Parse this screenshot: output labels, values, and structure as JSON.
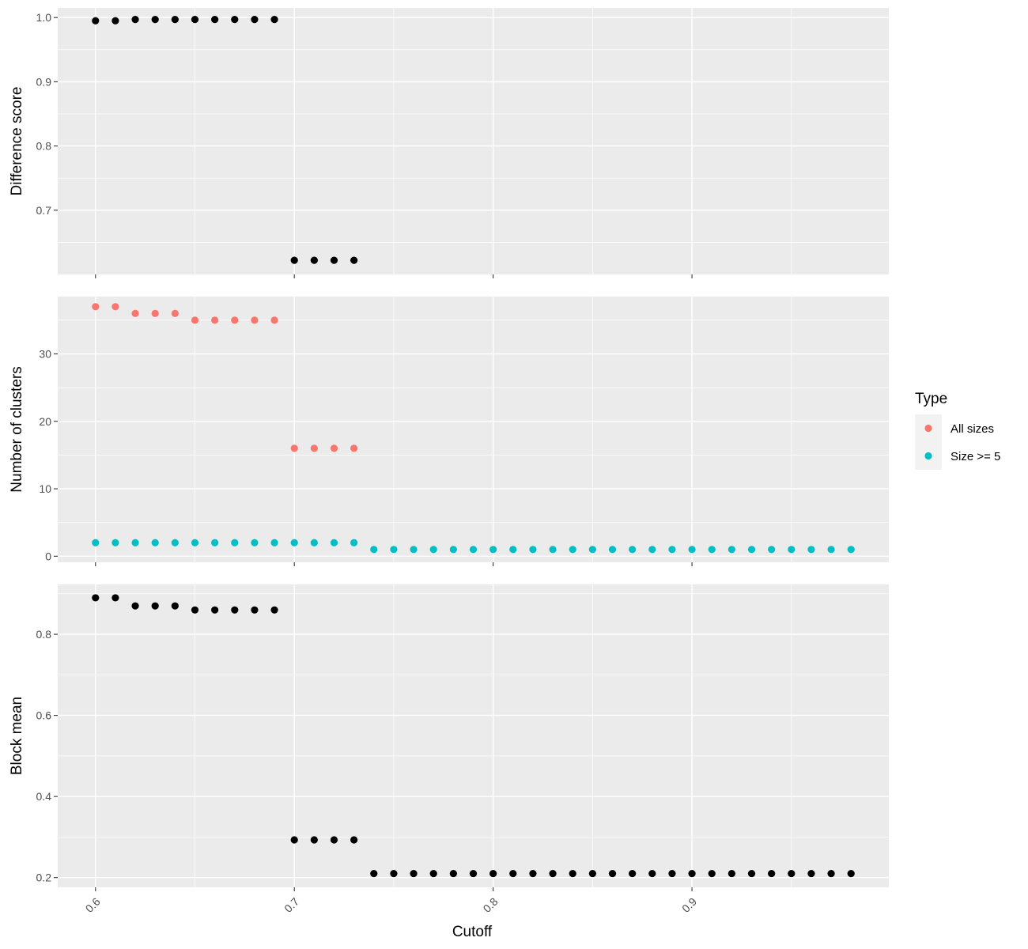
{
  "chart_data": [
    {
      "type": "scatter",
      "panel": "top",
      "ylabel": "Difference score",
      "y_ticks": [
        0.7,
        0.8,
        0.9,
        1.0
      ],
      "y_tick_labels": [
        "0.7",
        "0.8",
        "0.9",
        "1.0"
      ],
      "ylim": [
        0.6,
        1.015
      ],
      "x_ticks": [
        0.6,
        0.7,
        0.8,
        0.9
      ],
      "series": [
        {
          "color": "#000000",
          "points": [
            [
              0.6,
              0.995
            ],
            [
              0.61,
              0.995
            ],
            [
              0.62,
              0.997
            ],
            [
              0.63,
              0.997
            ],
            [
              0.64,
              0.997
            ],
            [
              0.65,
              0.997
            ],
            [
              0.66,
              0.997
            ],
            [
              0.67,
              0.997
            ],
            [
              0.68,
              0.997
            ],
            [
              0.69,
              0.997
            ],
            [
              0.7,
              0.622
            ],
            [
              0.71,
              0.622
            ],
            [
              0.72,
              0.622
            ],
            [
              0.73,
              0.622
            ]
          ]
        }
      ]
    },
    {
      "type": "scatter",
      "panel": "middle",
      "ylabel": "Number of clusters",
      "y_ticks": [
        0,
        10,
        20,
        30
      ],
      "y_tick_labels": [
        "0",
        "10",
        "20",
        "30"
      ],
      "ylim": [
        -0.9,
        38.5
      ],
      "x_ticks": [
        0.6,
        0.7,
        0.8,
        0.9
      ],
      "series": [
        {
          "name": "All sizes",
          "color": "#f8766d",
          "points": [
            [
              0.6,
              37
            ],
            [
              0.61,
              37
            ],
            [
              0.62,
              36
            ],
            [
              0.63,
              36
            ],
            [
              0.64,
              36
            ],
            [
              0.65,
              35
            ],
            [
              0.66,
              35
            ],
            [
              0.67,
              35
            ],
            [
              0.68,
              35
            ],
            [
              0.69,
              35
            ],
            [
              0.7,
              16
            ],
            [
              0.71,
              16
            ],
            [
              0.72,
              16
            ],
            [
              0.73,
              16
            ]
          ]
        },
        {
          "name": "Size >= 5",
          "color": "#00bfc4",
          "points": [
            [
              0.6,
              2
            ],
            [
              0.61,
              2
            ],
            [
              0.62,
              2
            ],
            [
              0.63,
              2
            ],
            [
              0.64,
              2
            ],
            [
              0.65,
              2
            ],
            [
              0.66,
              2
            ],
            [
              0.67,
              2
            ],
            [
              0.68,
              2
            ],
            [
              0.69,
              2
            ],
            [
              0.7,
              2
            ],
            [
              0.71,
              2
            ],
            [
              0.72,
              2
            ],
            [
              0.73,
              2
            ],
            [
              0.74,
              1
            ],
            [
              0.75,
              1
            ],
            [
              0.76,
              1
            ],
            [
              0.77,
              1
            ],
            [
              0.78,
              1
            ],
            [
              0.79,
              1
            ],
            [
              0.8,
              1
            ],
            [
              0.81,
              1
            ],
            [
              0.82,
              1
            ],
            [
              0.83,
              1
            ],
            [
              0.84,
              1
            ],
            [
              0.85,
              1
            ],
            [
              0.86,
              1
            ],
            [
              0.87,
              1
            ],
            [
              0.88,
              1
            ],
            [
              0.89,
              1
            ],
            [
              0.9,
              1
            ],
            [
              0.91,
              1
            ],
            [
              0.92,
              1
            ],
            [
              0.93,
              1
            ],
            [
              0.94,
              1
            ],
            [
              0.95,
              1
            ],
            [
              0.96,
              1
            ],
            [
              0.97,
              1
            ],
            [
              0.98,
              1
            ]
          ]
        }
      ]
    },
    {
      "type": "scatter",
      "panel": "bottom",
      "ylabel": "Block mean",
      "xlabel": "Cutoff",
      "y_ticks": [
        0.2,
        0.4,
        0.6,
        0.8
      ],
      "y_tick_labels": [
        "0.2",
        "0.4",
        "0.6",
        "0.8"
      ],
      "ylim": [
        0.176,
        0.923
      ],
      "x_ticks": [
        0.6,
        0.7,
        0.8,
        0.9
      ],
      "x_tick_labels": [
        "0.6",
        "0.7",
        "0.8",
        "0.9"
      ],
      "series": [
        {
          "color": "#000000",
          "points": [
            [
              0.6,
              0.89
            ],
            [
              0.61,
              0.89
            ],
            [
              0.62,
              0.87
            ],
            [
              0.63,
              0.87
            ],
            [
              0.64,
              0.87
            ],
            [
              0.65,
              0.86
            ],
            [
              0.66,
              0.86
            ],
            [
              0.67,
              0.86
            ],
            [
              0.68,
              0.86
            ],
            [
              0.69,
              0.86
            ],
            [
              0.7,
              0.293
            ],
            [
              0.71,
              0.293
            ],
            [
              0.72,
              0.293
            ],
            [
              0.73,
              0.293
            ],
            [
              0.74,
              0.21
            ],
            [
              0.75,
              0.21
            ],
            [
              0.76,
              0.21
            ],
            [
              0.77,
              0.21
            ],
            [
              0.78,
              0.21
            ],
            [
              0.79,
              0.21
            ],
            [
              0.8,
              0.21
            ],
            [
              0.81,
              0.21
            ],
            [
              0.82,
              0.21
            ],
            [
              0.83,
              0.21
            ],
            [
              0.84,
              0.21
            ],
            [
              0.85,
              0.21
            ],
            [
              0.86,
              0.21
            ],
            [
              0.87,
              0.21
            ],
            [
              0.88,
              0.21
            ],
            [
              0.89,
              0.21
            ],
            [
              0.9,
              0.21
            ],
            [
              0.91,
              0.21
            ],
            [
              0.92,
              0.21
            ],
            [
              0.93,
              0.21
            ],
            [
              0.94,
              0.21
            ],
            [
              0.95,
              0.21
            ],
            [
              0.96,
              0.21
            ],
            [
              0.97,
              0.21
            ],
            [
              0.98,
              0.21
            ]
          ]
        }
      ]
    }
  ],
  "shared_x": {
    "xlim": [
      0.581,
      0.999
    ],
    "label": "Cutoff"
  },
  "legend": {
    "title": "Type",
    "placement": "right",
    "items": [
      {
        "label": "All sizes",
        "color": "#f8766d"
      },
      {
        "label": "Size >= 5",
        "color": "#00bfc4"
      }
    ]
  }
}
